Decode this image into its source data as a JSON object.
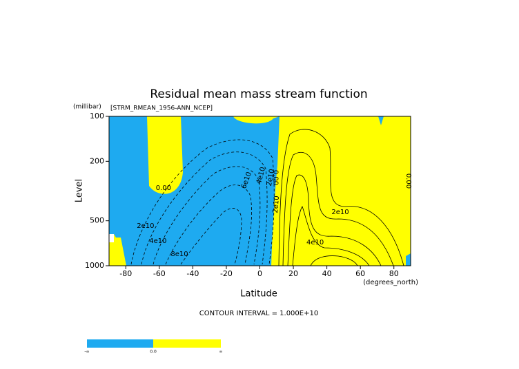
{
  "chart_data": {
    "type": "contour",
    "title": "Residual mean mass stream function",
    "subtitle": "[STRM_RMEAN_1956-ANN_NCEP]",
    "x_label": "Latitude",
    "x_units": "(degrees_north)",
    "y_label": "Level",
    "y_units": "(millibar)",
    "xlim": [
      -90,
      90
    ],
    "ylim": [
      1000,
      100
    ],
    "y_log": true,
    "xticks": [
      -80,
      -60,
      -40,
      -20,
      0,
      20,
      40,
      60,
      80
    ],
    "yticks": [
      100,
      200,
      500,
      1000
    ],
    "colors": {
      "negative": "#1eaaf0",
      "positive": "#ffff00"
    },
    "contour_labels": [
      {
        "text": "0.00",
        "x": -57.5,
        "y": 301
      },
      {
        "text": "2e10",
        "x": -68.2,
        "y": 541
      },
      {
        "text": "4e10",
        "x": -60.8,
        "y": 682
      },
      {
        "text": "8e10",
        "x": -48,
        "y": 835
      },
      {
        "text": "6e10",
        "x": -8,
        "y": 268
      },
      {
        "text": "4e10",
        "x": 0.6,
        "y": 249
      },
      {
        "text": "2e10",
        "x": 6.4,
        "y": 257
      },
      {
        "text": "0.00",
        "x": 9.5,
        "y": 257
      },
      {
        "text": "2e10",
        "x": 9.7,
        "y": 389
      },
      {
        "text": "2e10",
        "x": 48,
        "y": 437
      },
      {
        "text": "4e10",
        "x": 33,
        "y": 697
      },
      {
        "text": "0.00",
        "x": 88.7,
        "y": 271
      }
    ],
    "footer": "CONTOUR INTERVAL = 1.000E+10",
    "colorbar": {
      "labels": [
        "-∞",
        "0.0",
        "∞"
      ]
    }
  }
}
